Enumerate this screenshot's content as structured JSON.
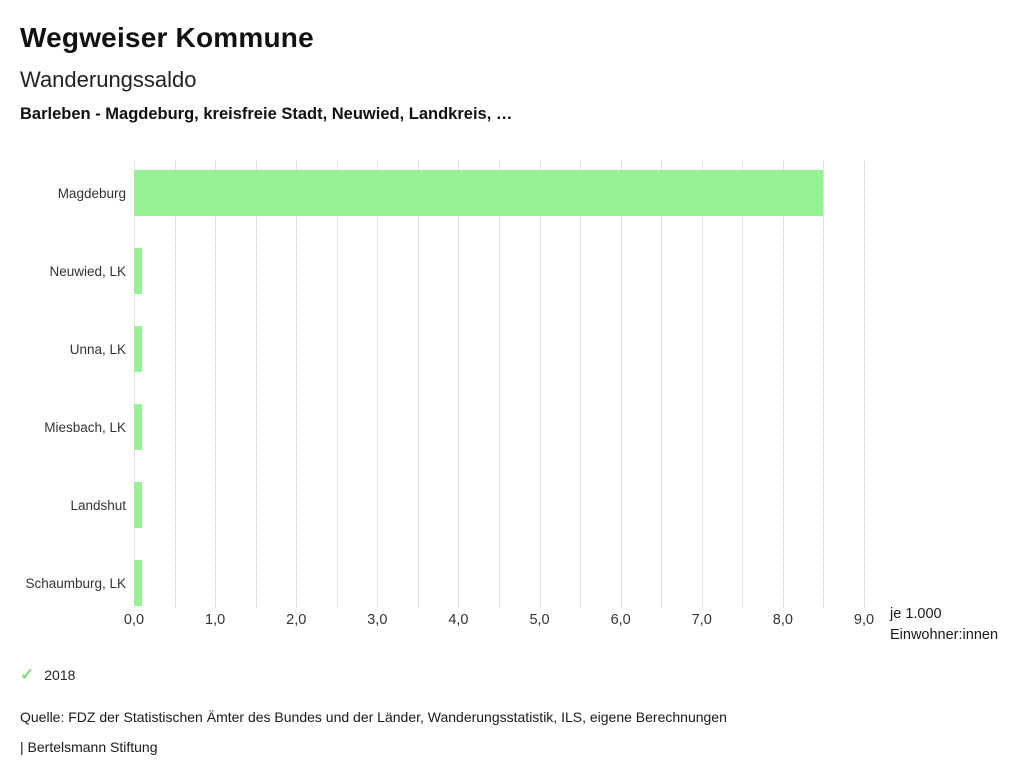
{
  "header": {
    "title": "Wegweiser Kommune",
    "subtitle": "Wanderungssaldo",
    "selection": "Barleben - Magdeburg, kreisfreie Stadt, Neuwied, Landkreis, …"
  },
  "chart_data": {
    "type": "bar",
    "orientation": "horizontal",
    "title": "Wanderungssaldo",
    "categories": [
      "Magdeburg",
      "Neuwied, LK",
      "Unna, LK",
      "Miesbach, LK",
      "Landshut",
      "Schaumburg, LK"
    ],
    "series": [
      {
        "name": "2018",
        "values": [
          8.5,
          0.1,
          0.1,
          0.1,
          0.1,
          0.1
        ]
      }
    ],
    "xlim": [
      0,
      9
    ],
    "x_tick_labels": [
      "0,0",
      "1,0",
      "2,0",
      "3,0",
      "4,0",
      "5,0",
      "6,0",
      "7,0",
      "8,0",
      "9,0"
    ],
    "x_grid_step": 0.5,
    "grid": "dotted-vertical",
    "unit_label_line1": "je 1.000",
    "unit_label_line2": "Einwohner:innen",
    "bar_color": "#96f294",
    "legend_position": "bottom-left"
  },
  "legend": {
    "check_icon": "✓",
    "year": "2018",
    "check_color": "#82e082"
  },
  "footer": {
    "source": "Quelle: FDZ der Statistischen Ämter des Bundes und der Länder, Wanderungsstatistik, ILS, eigene Berechnungen",
    "attribution": "| Bertelsmann Stiftung"
  }
}
